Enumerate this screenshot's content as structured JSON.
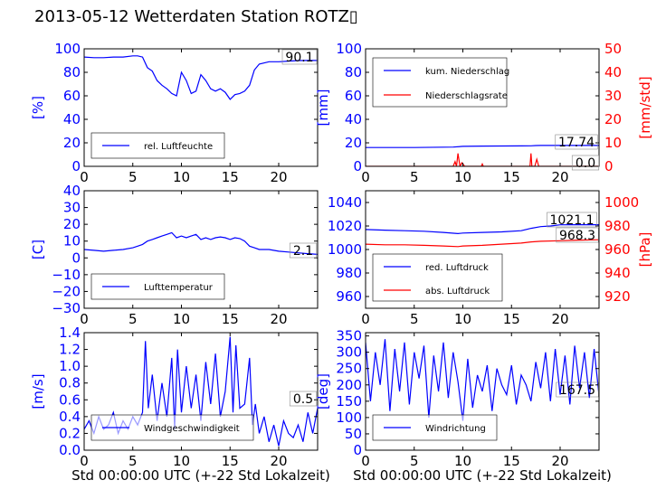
{
  "title": "2013-05-12 Wetterdaten Station ROTZ▯",
  "colors": {
    "blue": "#0000ff",
    "red": "#ff0000",
    "axis": "#000000"
  },
  "chart_data": [
    {
      "id": "humidity",
      "type": "line",
      "xlabel": "",
      "ylabel": "[%]",
      "xlim": [
        0,
        24
      ],
      "ylim": [
        0,
        100
      ],
      "xticks": [
        "0",
        "5",
        "10",
        "15",
        "20"
      ],
      "yticks": [
        "0",
        "20",
        "40",
        "60",
        "80",
        "100"
      ],
      "legend": [
        "rel. Luftfeuchte"
      ],
      "legend_position": "lower-left",
      "annotation": "90.1",
      "series": [
        {
          "name": "rel. Luftfeuchte",
          "color": "#0000ff",
          "x": [
            0,
            1,
            2,
            3,
            4,
            5,
            5.5,
            6,
            6.5,
            7,
            7.5,
            8,
            8.5,
            9,
            9.5,
            10,
            10.5,
            11,
            11.5,
            12,
            12.5,
            13,
            13.5,
            14,
            14.5,
            15,
            15.5,
            16,
            16.5,
            17,
            17.5,
            18,
            19,
            20,
            21,
            22,
            23,
            24
          ],
          "y": [
            93,
            92.5,
            92.5,
            93,
            93,
            94,
            94,
            93,
            84,
            81,
            73,
            69,
            66,
            62,
            60,
            80,
            73,
            62,
            64,
            78,
            73,
            66,
            64,
            66,
            63,
            57,
            61,
            62,
            64,
            69,
            82,
            87,
            89,
            89,
            89.5,
            90,
            90.1,
            90.1
          ]
        }
      ]
    },
    {
      "id": "precip",
      "type": "line",
      "xlabel": "",
      "ylabel": "[mm]",
      "ylabel_right": "[mm/std]",
      "xlim": [
        0,
        24
      ],
      "ylim": [
        0,
        100
      ],
      "ylim_right": [
        0,
        50
      ],
      "xticks": [
        "0",
        "5",
        "10",
        "15",
        "20"
      ],
      "yticks": [
        "0",
        "20",
        "40",
        "60",
        "80",
        "100"
      ],
      "yticks_right": [
        "0",
        "10",
        "20",
        "30",
        "40",
        "50"
      ],
      "legend": [
        "kum. Niederschlag",
        "Niederschlagsrate"
      ],
      "legend_position": "top-left",
      "annotations": [
        "17.74",
        "0.0"
      ],
      "series": [
        {
          "name": "kum. Niederschlag",
          "color": "#0000ff",
          "axis": "left",
          "x": [
            0,
            5,
            9,
            10,
            12,
            16,
            17,
            17.5,
            18,
            20,
            22,
            24
          ],
          "y": [
            16,
            16,
            16.4,
            17,
            17.2,
            17.4,
            17.5,
            17.7,
            17.74,
            17.74,
            17.74,
            17.74
          ]
        },
        {
          "name": "Niederschlagsrate",
          "color": "#ff0000",
          "axis": "right",
          "x": [
            0,
            9,
            9.2,
            9.35,
            9.5,
            9.7,
            9.9,
            10.2,
            11.9,
            12,
            12.1,
            16.9,
            17,
            17.1,
            17.4,
            17.6,
            17.8,
            24
          ],
          "y": [
            0,
            0,
            2,
            0,
            5.5,
            0,
            1.5,
            0,
            0,
            1,
            0,
            0,
            5.5,
            0,
            0,
            3,
            0,
            0
          ]
        }
      ]
    },
    {
      "id": "temperature",
      "type": "line",
      "xlabel": "",
      "ylabel": "[C]",
      "xlim": [
        0,
        24
      ],
      "ylim": [
        -30,
        40
      ],
      "xticks": [
        "0",
        "5",
        "10",
        "15",
        "20"
      ],
      "yticks": [
        "−30",
        "−20",
        "−10",
        "0",
        "10",
        "20",
        "30",
        "40"
      ],
      "legend": [
        "Lufttemperatur"
      ],
      "legend_position": "lower-left",
      "annotation": "2.1",
      "series": [
        {
          "name": "Lufttemperatur",
          "color": "#0000ff",
          "x": [
            0,
            1,
            2,
            3,
            4,
            5,
            5.5,
            6,
            6.5,
            7,
            7.5,
            8,
            8.5,
            9,
            9.5,
            10,
            10.5,
            11,
            11.5,
            12,
            12.5,
            13,
            13.5,
            14,
            14.5,
            15,
            15.5,
            16,
            16.5,
            17,
            17.5,
            18,
            19,
            20,
            21,
            22,
            23,
            24
          ],
          "y": [
            5,
            4.5,
            4,
            4.5,
            5,
            6,
            7,
            8,
            10,
            11,
            12,
            13,
            14,
            15,
            12,
            13,
            12,
            13,
            14,
            11,
            12,
            11,
            12,
            12.5,
            12,
            11,
            12,
            11.5,
            10,
            7,
            6,
            5,
            5,
            4,
            3.5,
            3,
            2.5,
            2.1
          ]
        }
      ]
    },
    {
      "id": "pressure",
      "type": "line",
      "xlabel": "",
      "ylabel": "",
      "ylabel_right": "[hPa]",
      "xlim": [
        0,
        24
      ],
      "ylim": [
        950,
        1050
      ],
      "ylim_right": [
        910,
        1010
      ],
      "xticks": [
        "0",
        "5",
        "10",
        "15",
        "20"
      ],
      "yticks": [
        "960",
        "980",
        "1000",
        "1020",
        "1040"
      ],
      "yticks_right": [
        "920",
        "940",
        "960",
        "980",
        "1000"
      ],
      "legend": [
        "red. Luftdruck",
        "abs. Luftdruck"
      ],
      "legend_position": "lower-left",
      "annotations": [
        "1021.1",
        "968.3"
      ],
      "series": [
        {
          "name": "red. Luftdruck",
          "color": "#0000ff",
          "axis": "left",
          "x": [
            0,
            2,
            4,
            6,
            8,
            9.5,
            10,
            12,
            14,
            16,
            17,
            18,
            19,
            20,
            22,
            24
          ],
          "y": [
            1017,
            1016.5,
            1016,
            1015.5,
            1014.5,
            1013.5,
            1014,
            1014.5,
            1015,
            1016,
            1018,
            1019.5,
            1020,
            1021,
            1021.1,
            1021.1
          ]
        },
        {
          "name": "abs. Luftdruck",
          "color": "#ff0000",
          "axis": "right",
          "x": [
            0,
            2,
            4,
            6,
            8,
            9.5,
            10,
            12,
            14,
            16,
            17,
            18,
            20,
            22,
            24
          ],
          "y": [
            964.5,
            964,
            964,
            963.5,
            963,
            962.5,
            963,
            963.5,
            964.5,
            965.5,
            966.5,
            967,
            967.5,
            968,
            968.3
          ]
        }
      ]
    },
    {
      "id": "wind_speed",
      "type": "line",
      "xlabel": "Std 00:00:00 UTC (+-22 Std Lokalzeit)",
      "ylabel": "[m/s]",
      "xlim": [
        0,
        24
      ],
      "ylim": [
        0,
        1.4
      ],
      "xticks": [
        "0",
        "5",
        "10",
        "15",
        "20"
      ],
      "yticks": [
        "0.0",
        "0.2",
        "0.4",
        "0.6",
        "0.8",
        "1.0",
        "1.2",
        "1.4"
      ],
      "legend": [
        "Windgeschwindigkeit"
      ],
      "legend_position": "lower-center",
      "annotation": "0.5",
      "series": [
        {
          "name": "Windgeschwindigkeit",
          "color": "#0000ff",
          "x": [
            0,
            0.5,
            1,
            1.5,
            2,
            2.5,
            3,
            3.5,
            4,
            4.5,
            5,
            5.5,
            6,
            6.3,
            6.6,
            7,
            7.5,
            8,
            8.5,
            9,
            9.3,
            9.6,
            10,
            10.5,
            11,
            11.5,
            12,
            12.5,
            13,
            13.5,
            14,
            14.5,
            15,
            15.3,
            15.6,
            16,
            16.5,
            17,
            17.3,
            17.6,
            18,
            18.5,
            19,
            19.5,
            20,
            20.5,
            21,
            21.5,
            22,
            22.5,
            23,
            23.5,
            24
          ],
          "y": [
            0.25,
            0.35,
            0.2,
            0.4,
            0.25,
            0.3,
            0.45,
            0.2,
            0.35,
            0.25,
            0.4,
            0.3,
            0.45,
            1.3,
            0.5,
            0.9,
            0.35,
            0.8,
            0.4,
            1.1,
            0.25,
            1.2,
            0.45,
            1.0,
            0.5,
            0.9,
            0.35,
            1.05,
            0.55,
            1.15,
            0.4,
            0.7,
            1.35,
            0.45,
            1.25,
            0.5,
            0.55,
            1.1,
            0.3,
            0.55,
            0.2,
            0.4,
            0.1,
            0.3,
            0.05,
            0.35,
            0.2,
            0.15,
            0.3,
            0.1,
            0.45,
            0.2,
            0.5
          ]
        }
      ]
    },
    {
      "id": "wind_direction",
      "type": "line",
      "xlabel": "Std 00:00:00 UTC (+-22 Std Lokalzeit)",
      "ylabel": "[deg]",
      "xlim": [
        0,
        24
      ],
      "ylim": [
        0,
        360
      ],
      "xticks": [
        "0",
        "5",
        "10",
        "15",
        "20"
      ],
      "yticks": [
        "0",
        "50",
        "100",
        "150",
        "200",
        "250",
        "300",
        "350"
      ],
      "legend": [
        "Windrichtung"
      ],
      "legend_position": "lower-left",
      "annotation": "167.5",
      "series": [
        {
          "name": "Windrichtung",
          "color": "#0000ff",
          "x": [
            0,
            0.5,
            1,
            1.5,
            2,
            2.5,
            3,
            3.5,
            4,
            4.5,
            5,
            5.5,
            6,
            6.5,
            7,
            7.5,
            8,
            8.5,
            9,
            9.5,
            10,
            10.5,
            11,
            11.5,
            12,
            12.5,
            13,
            13.5,
            14,
            14.5,
            15,
            15.5,
            16,
            16.5,
            17,
            17.5,
            18,
            18.5,
            19,
            19.5,
            20,
            20.5,
            21,
            21.5,
            22,
            22.5,
            23,
            23.5,
            24
          ],
          "y": [
            330,
            150,
            300,
            200,
            340,
            120,
            310,
            180,
            330,
            140,
            300,
            220,
            320,
            100,
            290,
            180,
            330,
            160,
            300,
            210,
            90,
            280,
            130,
            230,
            180,
            260,
            120,
            250,
            200,
            170,
            260,
            140,
            230,
            200,
            150,
            270,
            190,
            300,
            150,
            310,
            170,
            290,
            140,
            320,
            190,
            300,
            160,
            310,
            167.5
          ]
        }
      ]
    }
  ]
}
